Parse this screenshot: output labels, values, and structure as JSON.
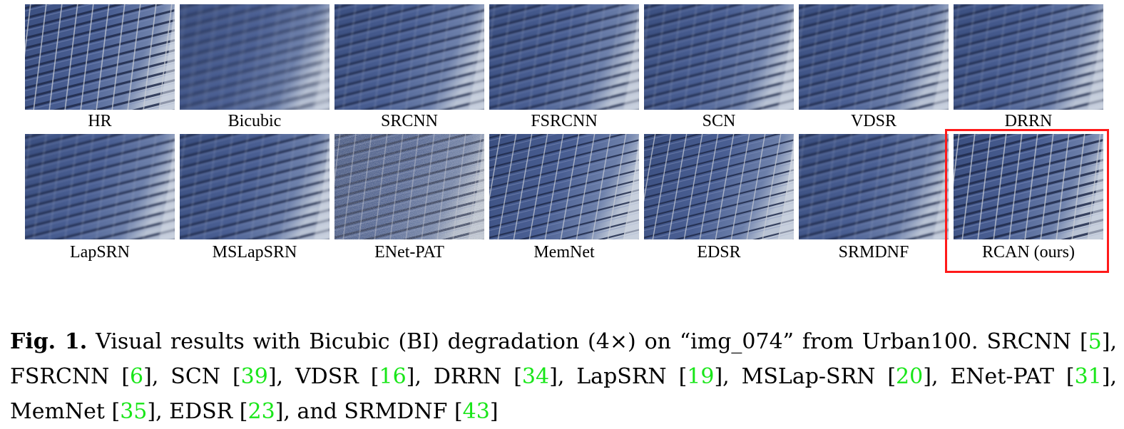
{
  "figure": {
    "row1": [
      {
        "label": "HR",
        "style": "sharp"
      },
      {
        "label": "Bicubic",
        "style": "blur"
      },
      {
        "label": "SRCNN",
        "style": "soft"
      },
      {
        "label": "FSRCNN",
        "style": "soft"
      },
      {
        "label": "SCN",
        "style": "soft"
      },
      {
        "label": "VDSR",
        "style": "soft"
      },
      {
        "label": "DRRN",
        "style": "soft"
      }
    ],
    "row2": [
      {
        "label": "LapSRN",
        "style": "soft"
      },
      {
        "label": "MSLapSRN",
        "style": "soft"
      },
      {
        "label": "ENet-PAT",
        "style": "noisy"
      },
      {
        "label": "MemNet",
        "style": "wrong"
      },
      {
        "label": "EDSR",
        "style": "wrong"
      },
      {
        "label": "SRMDNF",
        "style": "soft"
      },
      {
        "label": "RCAN (ours)",
        "style": "sharp"
      }
    ],
    "highlight_color": "#ff1a1a"
  },
  "caption": {
    "fig_label": "Fig. 1.",
    "t1": " Visual results with Bicubic (BI) degradation (4×) on “img_074” from Urban100. SRCNN [",
    "r1": "5",
    "t2": "], FSRCNN [",
    "r2": "6",
    "t3": "], SCN [",
    "r3": "39",
    "t4": "], VDSR [",
    "r4": "16",
    "t5": "], DRRN [",
    "r5": "34",
    "t6": "], LapSRN [",
    "r6": "19",
    "t7": "], MSLap-SRN [",
    "r7": "20",
    "t8": "], ENet-PAT [",
    "r8": "31",
    "t9": "], MemNet [",
    "r9": "35",
    "t10": "], EDSR [",
    "r10": "23",
    "t11": "], and SRMDNF [",
    "r11": "43",
    "t12": "]",
    "ref_color": "#19e619"
  }
}
